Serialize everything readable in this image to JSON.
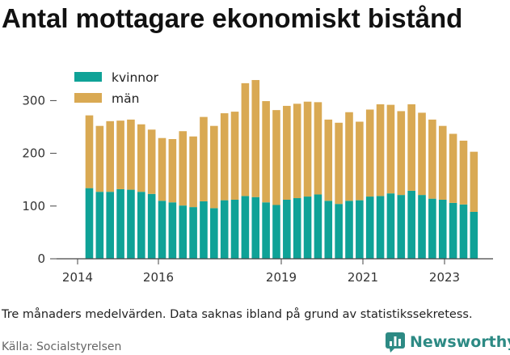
{
  "title": "Antal mottagare ekonomiskt bistånd",
  "note": "Tre månaders medelvärden. Data saknas ibland på grund av statistikssekretess.",
  "source": "Källa: Socialstyrelsen",
  "brand": "Newsworthy",
  "colors": {
    "kvinnor": "#0fa297",
    "man": "#d9a953",
    "brand": "#2d8a84"
  },
  "chart_data": {
    "type": "bar",
    "stacked": true,
    "ylim": [
      0,
      350
    ],
    "yticks": [
      0,
      100,
      200,
      300
    ],
    "xticks": [
      "2014",
      "2016",
      "2019",
      "2021",
      "2023"
    ],
    "legend": "top-left",
    "grid": false,
    "series": [
      {
        "name": "kvinnor",
        "values": [
          134,
          127,
          127,
          132,
          131,
          127,
          123,
          110,
          107,
          101,
          98,
          109,
          96,
          111,
          112,
          119,
          117,
          107,
          102,
          112,
          115,
          118,
          122,
          110,
          104,
          110,
          111,
          118,
          119,
          124,
          121,
          129,
          121,
          114,
          112,
          106,
          103,
          89
        ]
      },
      {
        "name": "män",
        "values": [
          138,
          125,
          134,
          130,
          133,
          128,
          122,
          119,
          120,
          141,
          134,
          160,
          156,
          165,
          167,
          214,
          222,
          192,
          180,
          178,
          179,
          180,
          175,
          154,
          154,
          168,
          149,
          165,
          174,
          168,
          159,
          164,
          156,
          150,
          140,
          131,
          121,
          114
        ]
      }
    ]
  }
}
